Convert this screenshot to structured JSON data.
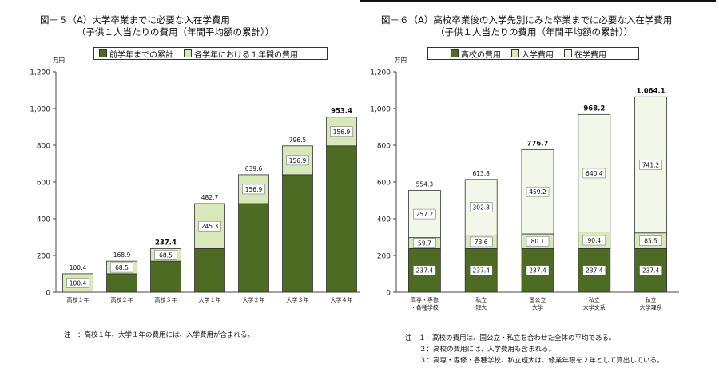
{
  "colors": {
    "dark": "#4e6b23",
    "light": "#d8e8b8",
    "pale": "#f3f7ea",
    "edge": "#333333"
  },
  "left": {
    "title": "図－５（A）大学卒業までに必要な入在学費用",
    "subtitle": "（子供１人当たりの費用（年間平均額の累計））",
    "unit": "万円",
    "legend": [
      "前学年までの累計",
      "各学年における１年間の費用"
    ],
    "note": "注　：高校１年、大学１年の費用には、入学費用が含まれる。"
  },
  "right": {
    "title": "図－６（A）高校卒業後の入学先別にみた卒業までに必要な入在学費用",
    "subtitle": "（子供１人当たりの費用（年間平均額の累計））",
    "unit": "万円",
    "legend": [
      "高校の費用",
      "入学費用",
      "在学費用"
    ],
    "notes": [
      "注　１：高校の費用は、国公立・私立を合わせた全体の平均である。",
      "２：高校の費用には、入学費用も含まれる。",
      "３：高専・専修・各種学校、私立短大は、修業年限を２年として算出している。"
    ]
  },
  "chart_data": [
    {
      "type": "bar",
      "stacked": true,
      "title": "図－５（A）大学卒業までに必要な入在学費用",
      "subtitle": "（子供１人当たりの費用（年間平均額の累計））",
      "ylabel": "万円",
      "ylim": [
        0,
        1200
      ],
      "yticks": [
        0,
        200,
        400,
        600,
        800,
        1000,
        1200
      ],
      "ytick_labels": [
        "0",
        "200",
        "400",
        "600",
        "800",
        "1,000",
        "1,200"
      ],
      "categories": [
        "高校１年",
        "高校２年",
        "高校３年",
        "大学１年",
        "大学２年",
        "大学３年",
        "大学４年"
      ],
      "series": [
        {
          "name": "前学年までの累計",
          "values": [
            0,
            100.4,
            168.9,
            237.4,
            482.7,
            639.6,
            796.5
          ]
        },
        {
          "name": "各学年における１年間の費用",
          "values": [
            100.4,
            68.5,
            68.5,
            245.3,
            156.9,
            156.9,
            156.9
          ],
          "labels": [
            "100.4",
            "68.5",
            "68.5",
            "245.3",
            "156.9",
            "156.9",
            "156.9"
          ]
        }
      ],
      "totals": [
        "100.4",
        "168.9",
        "237.4",
        "482.7",
        "639.6",
        "796.5",
        "953.4"
      ],
      "bold_totals": [
        2,
        6
      ],
      "legend_position": "top",
      "grid": false
    },
    {
      "type": "bar",
      "stacked": true,
      "title": "図－６（A）高校卒業後の入学先別にみた卒業までに必要な入在学費用",
      "subtitle": "（子供１人当たりの費用（年間平均額の累計））",
      "ylabel": "万円",
      "ylim": [
        0,
        1200
      ],
      "yticks": [
        0,
        200,
        400,
        600,
        800,
        1000,
        1200
      ],
      "ytick_labels": [
        "0",
        "200",
        "400",
        "600",
        "800",
        "1,000",
        "1,200"
      ],
      "categories": [
        [
          "高専・専修",
          "・各種学校"
        ],
        [
          "私立",
          "短大"
        ],
        [
          "国公立",
          "大学"
        ],
        [
          "私立",
          "大学文系"
        ],
        [
          "私立",
          "大学理系"
        ]
      ],
      "series": [
        {
          "name": "高校の費用",
          "values": [
            237.4,
            237.4,
            237.4,
            237.4,
            237.4
          ],
          "labels": [
            "237.4",
            "237.4",
            "237.4",
            "237.4",
            "237.4"
          ]
        },
        {
          "name": "入学費用",
          "values": [
            59.7,
            73.6,
            80.1,
            90.4,
            85.5
          ],
          "labels": [
            "59.7",
            "73.6",
            "80.1",
            "90.4",
            "85.5"
          ]
        },
        {
          "name": "在学費用",
          "values": [
            257.2,
            302.8,
            459.2,
            640.4,
            741.2
          ],
          "labels": [
            "257.2",
            "302.8",
            "459.2",
            "640.4",
            "741.2"
          ]
        }
      ],
      "totals": [
        "554.3",
        "613.8",
        "776.7",
        "968.2",
        "1,064.1"
      ],
      "bold_totals": [
        2,
        3,
        4
      ],
      "legend_position": "top",
      "grid": false
    }
  ]
}
